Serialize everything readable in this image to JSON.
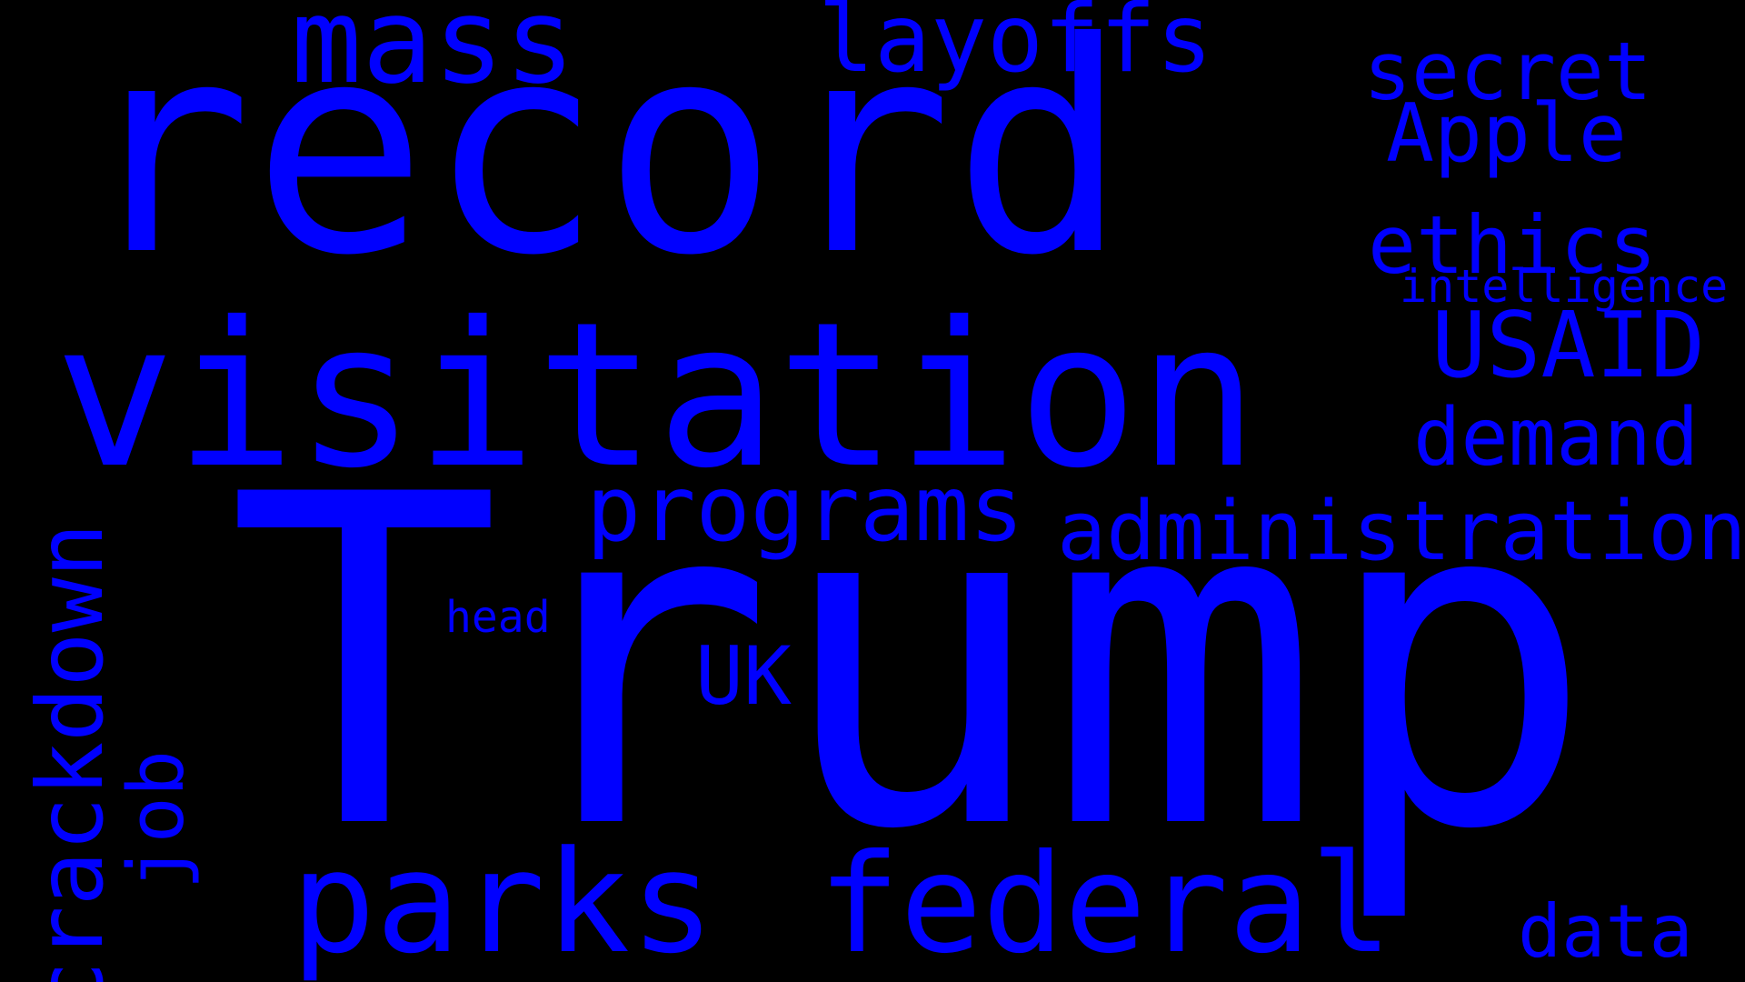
{
  "word_cloud": {
    "background": "#000000",
    "word_color": "#0000ff",
    "words": {
      "trump": "Trump",
      "record": "record",
      "visitation": "visitation",
      "mass": "mass",
      "layoffs": "layoffs",
      "secret": "secret",
      "apple": "Apple",
      "ethics": "ethics",
      "intelligence": "intelligence",
      "usaid": "USAID",
      "demand": "demand",
      "programs": "programs",
      "administration": "administration",
      "head": "head",
      "uk": "UK",
      "parks": "parks",
      "federal": "federal",
      "data": "data",
      "crackdown": "crackdown",
      "job": "job"
    }
  }
}
